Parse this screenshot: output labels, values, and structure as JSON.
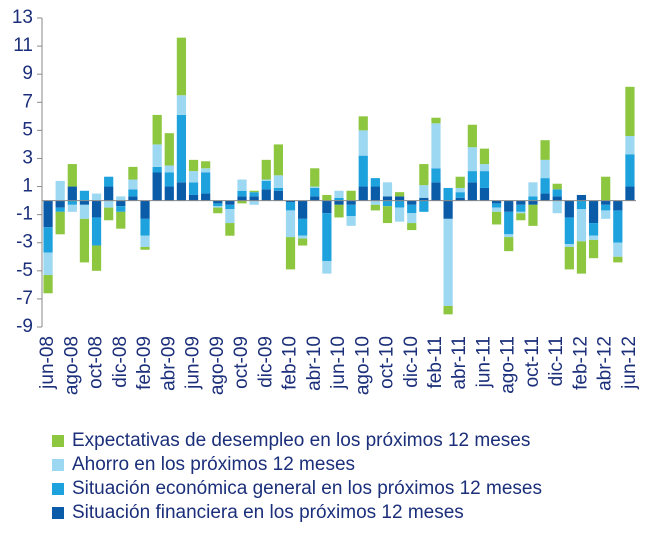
{
  "chart_data": {
    "type": "stacked-bar",
    "categories": [
      "jun-08",
      null,
      "ago-08",
      null,
      "oct-08",
      null,
      "dic-08",
      null,
      "feb-09",
      null,
      "abr-09",
      null,
      "jun-09",
      null,
      "ago-09",
      null,
      "oct-09",
      null,
      "dic-09",
      null,
      "feb-10",
      null,
      "abr-10",
      null,
      "jun-10",
      null,
      "ago-10",
      null,
      "oct-10",
      null,
      "dic-10",
      null,
      "feb-11",
      null,
      "abr-11",
      null,
      "jun-11",
      null,
      "ago-11",
      null,
      "oct-11",
      null,
      "dic-11",
      null,
      "feb-12",
      null,
      "abr-12",
      null,
      "jun-12"
    ],
    "series": [
      {
        "name": "Expectativas de desempleo en los próximos 12 meses",
        "color": "#8dc63f",
        "values": [
          -1.3,
          -1.6,
          1.6,
          -3.1,
          -1.8,
          -0.9,
          -1.2,
          0.9,
          -0.2,
          2.1,
          2.3,
          4.1,
          0.8,
          0.5,
          -0.4,
          -0.9,
          -0.2,
          0.1,
          1.4,
          2.2,
          -2.3,
          -0.5,
          1.3,
          0.4,
          -0.9,
          0.7,
          1.0,
          -0.4,
          -1.2,
          0.3,
          -0.5,
          1.5,
          0.4,
          -0.6,
          0.8,
          1.6,
          1.1,
          -0.9,
          -1.0,
          -0.5,
          -1.5,
          1.4,
          0.4,
          -1.6,
          -2.3,
          -1.3,
          1.7,
          -0.4,
          3.5
        ]
      },
      {
        "name": "Ahorro en los próximos 12 meses",
        "color": "#9dd8f2",
        "values": [
          -1.6,
          1.4,
          -0.5,
          -1.0,
          0.5,
          -0.5,
          0.3,
          0.7,
          -0.8,
          1.6,
          0.5,
          1.4,
          0.8,
          0.3,
          -0.1,
          -1.0,
          0.8,
          -0.3,
          0.1,
          0.9,
          -1.9,
          -0.2,
          0.1,
          -0.9,
          0.5,
          -0.7,
          1.8,
          -0.3,
          1.0,
          -1.0,
          -0.7,
          0.9,
          3.2,
          -6.2,
          0.3,
          1.7,
          0.5,
          -0.3,
          -0.2,
          -0.1,
          1.0,
          1.3,
          -0.9,
          -0.2,
          -2.3,
          -0.3,
          -0.6,
          -1.0,
          1.3
        ]
      },
      {
        "name": "Situación económica general en los próximos 12 meses",
        "color": "#1ea2dd",
        "values": [
          -1.8,
          -0.3,
          -0.3,
          0.7,
          -2.0,
          0.7,
          -0.4,
          0.5,
          -1.2,
          0.4,
          1.0,
          4.8,
          0.9,
          1.5,
          -0.2,
          -0.3,
          0.4,
          0.3,
          0.6,
          0.2,
          -0.6,
          -1.2,
          0.6,
          -3.4,
          0.2,
          -0.8,
          2.2,
          0.6,
          -0.4,
          -0.5,
          -0.6,
          -0.8,
          1.0,
          0.9,
          0.4,
          0.8,
          1.2,
          -0.3,
          -1.6,
          -0.5,
          0.3,
          1.1,
          0.5,
          -1.9,
          -0.6,
          -0.9,
          -0.4,
          -2.3,
          2.3
        ]
      },
      {
        "name": "Situación financiera en los próximos 12 meses",
        "color": "#0b5ca8",
        "values": [
          -1.9,
          -0.5,
          1.0,
          -0.3,
          -1.2,
          1.0,
          -0.4,
          0.3,
          -1.3,
          2.0,
          1.0,
          1.3,
          0.4,
          0.5,
          -0.2,
          -0.3,
          0.3,
          0.3,
          0.8,
          0.7,
          -0.1,
          -1.3,
          0.3,
          -0.9,
          -0.3,
          -0.3,
          1.0,
          1.0,
          0.3,
          0.3,
          -0.3,
          0.2,
          1.3,
          -1.3,
          0.2,
          1.3,
          0.9,
          -0.2,
          -0.8,
          -0.3,
          -0.3,
          0.5,
          0.3,
          -1.2,
          0.4,
          -1.6,
          -0.3,
          -0.7,
          1.0
        ]
      }
    ],
    "ylim": [
      -9,
      13
    ],
    "yticks": [
      -9,
      -7,
      -5,
      -3,
      -1,
      1,
      3,
      5,
      7,
      9,
      11,
      13
    ]
  }
}
